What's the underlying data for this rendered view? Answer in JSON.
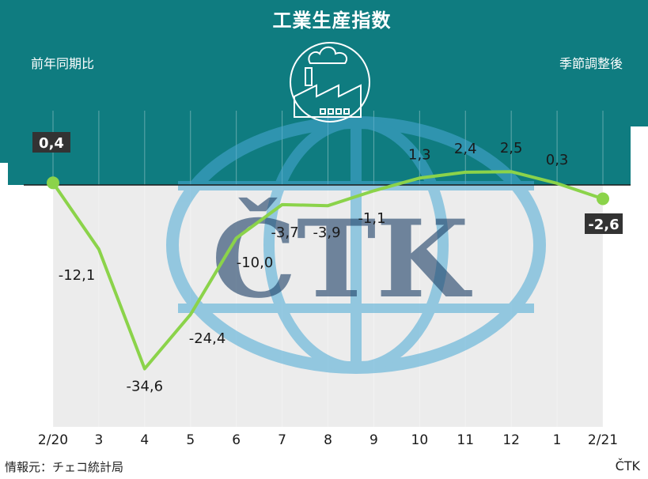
{
  "header": {
    "title": "工業生産指数",
    "left_label": "前年同期比",
    "right_label": "季節調整後"
  },
  "footer": {
    "source": "情報元：チェコ統計局",
    "credit": "ČTK"
  },
  "watermark": {
    "text": "ČTK"
  },
  "colors": {
    "line": "#8bd34a",
    "teal": "#0f7c80",
    "plot_bg": "#ececec"
  },
  "chart_data": {
    "type": "line",
    "categories": [
      "2/20",
      "3",
      "4",
      "5",
      "6",
      "7",
      "8",
      "9",
      "10",
      "11",
      "12",
      "1",
      "2/21"
    ],
    "values": [
      0.4,
      -12.1,
      -34.6,
      -24.4,
      -10.0,
      -3.7,
      -3.9,
      -1.1,
      1.3,
      2.4,
      2.5,
      0.3,
      -2.6
    ],
    "value_labels": [
      "0,4",
      "-12,1",
      "-34,6",
      "-24,4",
      "-10,0",
      "-3,7",
      "-3,9",
      "-1,1",
      "1,3",
      "2,4",
      "2,5",
      "0,3",
      "-2,6"
    ],
    "highlighted": [
      "0,4",
      "-2,6"
    ],
    "xlabel": "",
    "ylabel": "",
    "zero_line": true
  }
}
